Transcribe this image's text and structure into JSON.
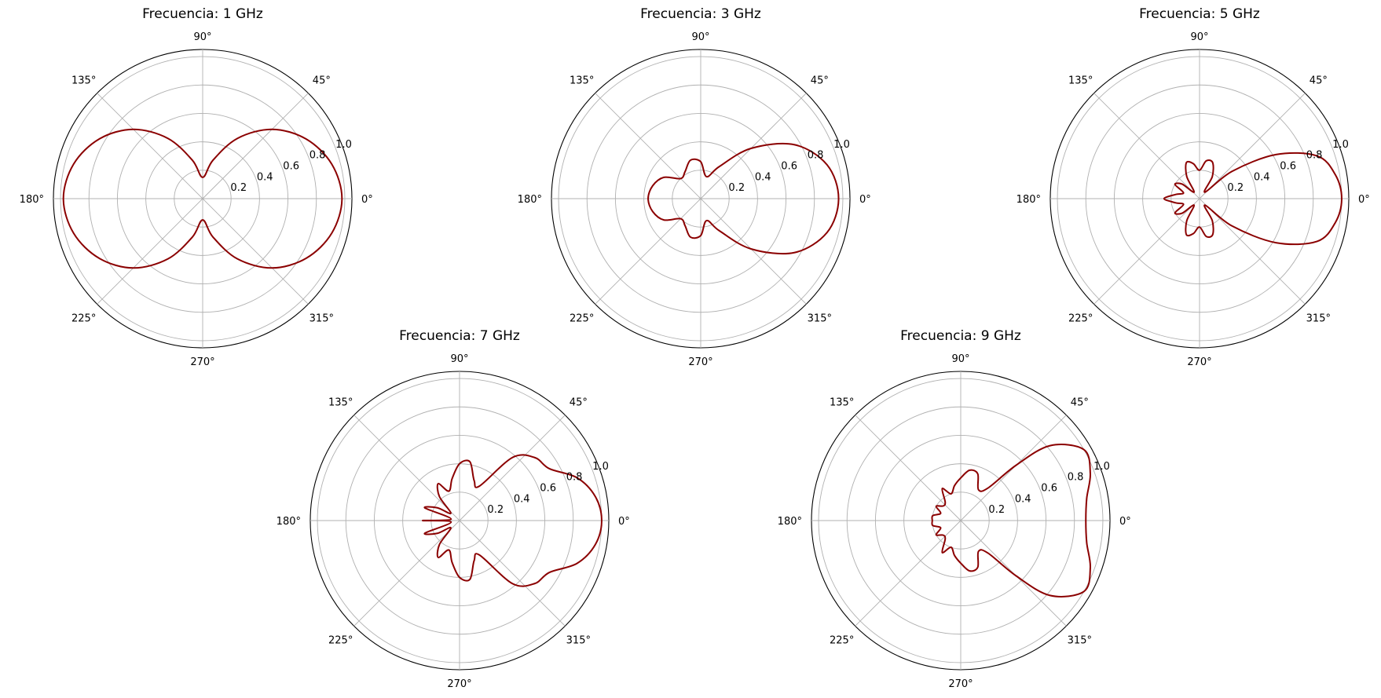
{
  "chart_data": [
    {
      "type": "polar",
      "title": "Frecuencia: 1 GHz",
      "theta_deg": [
        0,
        15,
        30,
        45,
        60,
        75,
        90,
        105,
        120,
        135,
        150,
        165,
        180,
        195,
        210,
        225,
        240,
        255,
        270,
        285,
        300,
        315,
        330,
        345,
        360
      ],
      "r": [
        0.98,
        0.94,
        0.84,
        0.69,
        0.49,
        0.28,
        0.15,
        0.28,
        0.49,
        0.69,
        0.84,
        0.94,
        0.98,
        0.94,
        0.84,
        0.69,
        0.49,
        0.28,
        0.15,
        0.28,
        0.49,
        0.69,
        0.84,
        0.94,
        0.98
      ],
      "rticks": [
        "0.2",
        "0.4",
        "0.6",
        "0.8",
        "1.0"
      ],
      "rlim": [
        0,
        1.05
      ],
      "theta_ticks": [
        "0°",
        "45°",
        "90°",
        "135°",
        "180°",
        "225°",
        "270°",
        "315°"
      ],
      "grid": true,
      "line_color": "#8b0000"
    },
    {
      "type": "polar",
      "title": "Frecuencia: 3 GHz",
      "theta_deg": [
        0,
        15,
        30,
        45,
        60,
        75,
        90,
        105,
        120,
        135,
        150,
        165,
        180,
        195,
        210,
        225,
        240,
        255,
        270,
        285,
        300,
        315,
        330,
        345,
        360
      ],
      "r": [
        0.97,
        0.92,
        0.76,
        0.5,
        0.26,
        0.16,
        0.26,
        0.28,
        0.22,
        0.2,
        0.3,
        0.35,
        0.37,
        0.35,
        0.3,
        0.2,
        0.22,
        0.28,
        0.26,
        0.16,
        0.26,
        0.5,
        0.76,
        0.92,
        0.97
      ],
      "rticks": [
        "0.2",
        "0.4",
        "0.6",
        "0.8",
        "1.0"
      ],
      "rlim": [
        0,
        1.05
      ],
      "theta_ticks": [
        "0°",
        "45°",
        "90°",
        "135°",
        "180°",
        "225°",
        "270°",
        "315°"
      ],
      "grid": true,
      "line_color": "#8b0000"
    },
    {
      "type": "polar",
      "title": "Frecuencia: 5 GHz",
      "theta_deg": [
        0,
        10,
        20,
        30,
        40,
        50,
        60,
        70,
        80,
        90,
        100,
        110,
        120,
        130,
        140,
        150,
        160,
        170,
        180,
        190,
        200,
        210,
        220,
        230,
        240,
        250,
        260,
        270,
        280,
        290,
        300,
        310,
        320,
        330,
        340,
        350,
        360
      ],
      "r": [
        1.0,
        0.97,
        0.88,
        0.62,
        0.3,
        0.06,
        0.18,
        0.27,
        0.27,
        0.2,
        0.25,
        0.27,
        0.18,
        0.06,
        0.16,
        0.2,
        0.12,
        0.17,
        0.25,
        0.17,
        0.12,
        0.2,
        0.16,
        0.06,
        0.18,
        0.27,
        0.25,
        0.2,
        0.27,
        0.27,
        0.18,
        0.06,
        0.3,
        0.62,
        0.88,
        0.97,
        1.0
      ],
      "rticks": [
        "0.2",
        "0.4",
        "0.6",
        "0.8",
        "1.0"
      ],
      "rlim": [
        0,
        1.05
      ],
      "theta_ticks": [
        "0°",
        "45°",
        "90°",
        "135°",
        "180°",
        "225°",
        "270°",
        "315°"
      ],
      "grid": true,
      "line_color": "#8b0000"
    },
    {
      "type": "polar",
      "title": "Frecuencia: 7 GHz",
      "theta_deg": [
        0,
        10,
        20,
        30,
        40,
        50,
        60,
        70,
        80,
        90,
        100,
        110,
        120,
        130,
        140,
        150,
        160,
        170,
        180,
        190,
        200,
        210,
        220,
        230,
        240,
        250,
        260,
        270,
        280,
        290,
        300,
        310,
        320,
        330,
        340,
        350,
        360
      ],
      "r": [
        1.0,
        0.97,
        0.88,
        0.73,
        0.69,
        0.58,
        0.28,
        0.3,
        0.42,
        0.4,
        0.3,
        0.22,
        0.3,
        0.22,
        0.08,
        0.18,
        0.26,
        0.06,
        0.26,
        0.06,
        0.26,
        0.18,
        0.08,
        0.22,
        0.3,
        0.22,
        0.3,
        0.4,
        0.42,
        0.3,
        0.28,
        0.58,
        0.69,
        0.73,
        0.88,
        0.97,
        1.0
      ],
      "rticks": [
        "0.2",
        "0.4",
        "0.6",
        "0.8",
        "1.0"
      ],
      "rlim": [
        0,
        1.05
      ],
      "theta_ticks": [
        "0°",
        "45°",
        "90°",
        "135°",
        "180°",
        "225°",
        "270°",
        "315°"
      ],
      "grid": true,
      "line_color": "#8b0000"
    },
    {
      "type": "polar",
      "title": "Frecuencia: 9 GHz",
      "theta_deg": [
        0,
        10,
        20,
        30,
        40,
        45,
        50,
        60,
        70,
        80,
        90,
        100,
        110,
        120,
        130,
        140,
        150,
        160,
        170,
        180,
        190,
        200,
        210,
        220,
        230,
        240,
        250,
        260,
        270,
        280,
        290,
        300,
        310,
        315,
        320,
        330,
        340,
        350,
        360
      ],
      "r": [
        0.88,
        0.9,
        0.97,
        1.0,
        0.82,
        0.55,
        0.3,
        0.25,
        0.35,
        0.36,
        0.3,
        0.25,
        0.2,
        0.26,
        0.17,
        0.16,
        0.2,
        0.15,
        0.2,
        0.2,
        0.2,
        0.15,
        0.2,
        0.16,
        0.17,
        0.26,
        0.2,
        0.25,
        0.3,
        0.36,
        0.35,
        0.25,
        0.3,
        0.55,
        0.82,
        1.0,
        0.97,
        0.9,
        0.88
      ],
      "rticks": [
        "0.2",
        "0.4",
        "0.6",
        "0.8",
        "1.0"
      ],
      "rlim": [
        0,
        1.05
      ],
      "theta_ticks": [
        "0°",
        "45°",
        "90°",
        "135°",
        "180°",
        "225°",
        "270°",
        "315°"
      ],
      "grid": true,
      "line_color": "#8b0000"
    }
  ]
}
